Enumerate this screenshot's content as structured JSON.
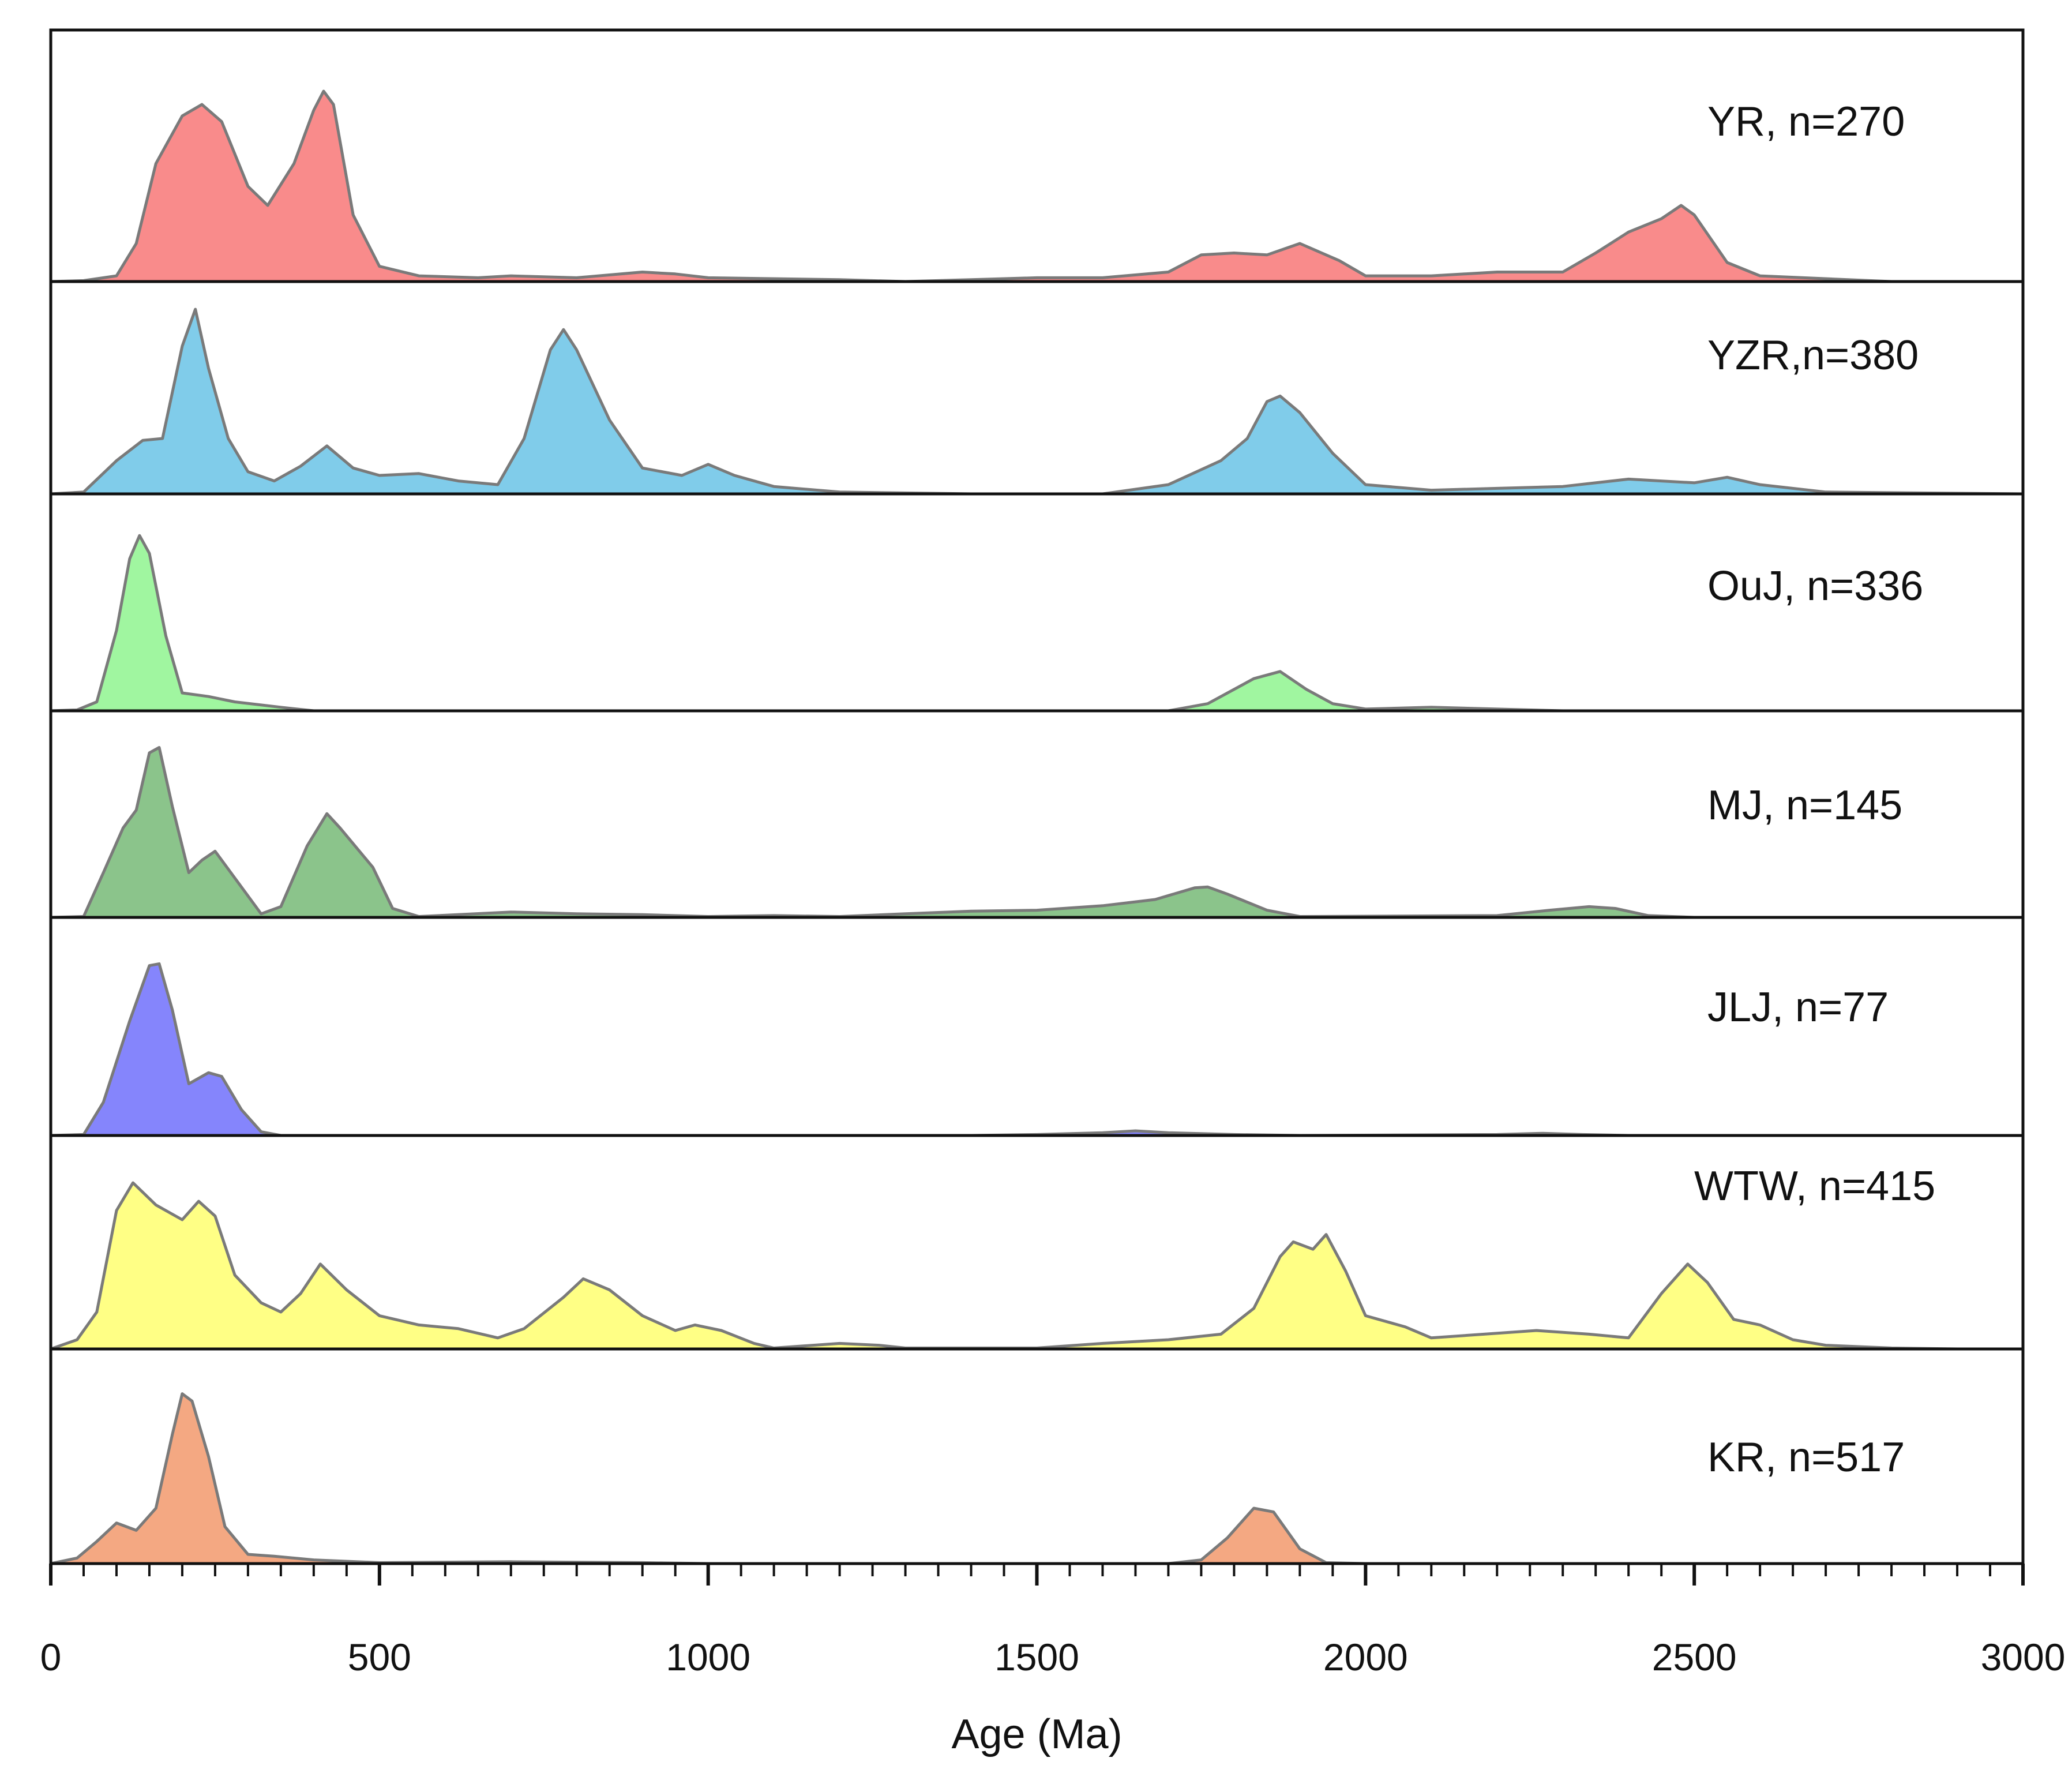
{
  "chart_data": {
    "type": "area",
    "title": "",
    "xlabel": "Age (Ma)",
    "ylabel": "",
    "xlim": [
      0,
      3000
    ],
    "xticks": [
      0,
      500,
      1000,
      1500,
      2000,
      2500,
      3000
    ],
    "xtick_labels": [
      "0",
      "500",
      "1000",
      "1500",
      "2000",
      "2500",
      "3000"
    ],
    "minor_tick_step": 50,
    "series": [
      {
        "name": "YR, n=270",
        "color": "#f98b8b",
        "points": [
          [
            0,
            0
          ],
          [
            50,
            0.005
          ],
          [
            100,
            0.03
          ],
          [
            130,
            0.2
          ],
          [
            160,
            0.62
          ],
          [
            200,
            0.87
          ],
          [
            230,
            0.93
          ],
          [
            260,
            0.84
          ],
          [
            300,
            0.5
          ],
          [
            330,
            0.4
          ],
          [
            370,
            0.62
          ],
          [
            400,
            0.9
          ],
          [
            415,
            1.0
          ],
          [
            430,
            0.93
          ],
          [
            460,
            0.35
          ],
          [
            500,
            0.08
          ],
          [
            560,
            0.03
          ],
          [
            650,
            0.02
          ],
          [
            700,
            0.03
          ],
          [
            800,
            0.02
          ],
          [
            900,
            0.05
          ],
          [
            950,
            0.04
          ],
          [
            1000,
            0.02
          ],
          [
            1200,
            0.01
          ],
          [
            1300,
            0.0
          ],
          [
            1400,
            0.01
          ],
          [
            1500,
            0.02
          ],
          [
            1600,
            0.02
          ],
          [
            1700,
            0.05
          ],
          [
            1750,
            0.14
          ],
          [
            1800,
            0.15
          ],
          [
            1850,
            0.14
          ],
          [
            1900,
            0.2
          ],
          [
            1960,
            0.11
          ],
          [
            2000,
            0.03
          ],
          [
            2100,
            0.03
          ],
          [
            2200,
            0.05
          ],
          [
            2300,
            0.05
          ],
          [
            2350,
            0.15
          ],
          [
            2400,
            0.26
          ],
          [
            2450,
            0.33
          ],
          [
            2480,
            0.4
          ],
          [
            2500,
            0.35
          ],
          [
            2550,
            0.1
          ],
          [
            2600,
            0.03
          ],
          [
            2800,
            0.0
          ],
          [
            3000,
            0.0
          ]
        ]
      },
      {
        "name": "YZR,n=380",
        "color": "#80ccea",
        "points": [
          [
            0,
            0
          ],
          [
            50,
            0.01
          ],
          [
            100,
            0.18
          ],
          [
            140,
            0.29
          ],
          [
            170,
            0.3
          ],
          [
            200,
            0.8
          ],
          [
            220,
            1.0
          ],
          [
            240,
            0.68
          ],
          [
            270,
            0.3
          ],
          [
            300,
            0.12
          ],
          [
            340,
            0.07
          ],
          [
            380,
            0.15
          ],
          [
            420,
            0.26
          ],
          [
            460,
            0.14
          ],
          [
            500,
            0.1
          ],
          [
            560,
            0.11
          ],
          [
            620,
            0.07
          ],
          [
            680,
            0.05
          ],
          [
            720,
            0.3
          ],
          [
            760,
            0.78
          ],
          [
            780,
            0.89
          ],
          [
            800,
            0.78
          ],
          [
            850,
            0.4
          ],
          [
            900,
            0.14
          ],
          [
            960,
            0.1
          ],
          [
            1000,
            0.16
          ],
          [
            1040,
            0.1
          ],
          [
            1100,
            0.04
          ],
          [
            1200,
            0.01
          ],
          [
            1400,
            0.0
          ],
          [
            1600,
            0.0
          ],
          [
            1700,
            0.05
          ],
          [
            1780,
            0.18
          ],
          [
            1820,
            0.3
          ],
          [
            1850,
            0.5
          ],
          [
            1870,
            0.53
          ],
          [
            1900,
            0.44
          ],
          [
            1950,
            0.22
          ],
          [
            2000,
            0.05
          ],
          [
            2100,
            0.02
          ],
          [
            2200,
            0.03
          ],
          [
            2300,
            0.04
          ],
          [
            2400,
            0.08
          ],
          [
            2500,
            0.06
          ],
          [
            2550,
            0.09
          ],
          [
            2600,
            0.05
          ],
          [
            2700,
            0.01
          ],
          [
            3000,
            0.0
          ]
        ]
      },
      {
        "name": "OuJ, n=336",
        "color": "#a0f6a0",
        "points": [
          [
            0,
            0
          ],
          [
            40,
            0.005
          ],
          [
            70,
            0.05
          ],
          [
            100,
            0.45
          ],
          [
            120,
            0.85
          ],
          [
            135,
            0.98
          ],
          [
            150,
            0.88
          ],
          [
            175,
            0.42
          ],
          [
            200,
            0.1
          ],
          [
            240,
            0.08
          ],
          [
            280,
            0.05
          ],
          [
            350,
            0.02
          ],
          [
            400,
            0.0
          ],
          [
            1000,
            0.0
          ],
          [
            1700,
            0.0
          ],
          [
            1760,
            0.04
          ],
          [
            1830,
            0.18
          ],
          [
            1870,
            0.22
          ],
          [
            1910,
            0.12
          ],
          [
            1950,
            0.04
          ],
          [
            2000,
            0.01
          ],
          [
            2100,
            0.02
          ],
          [
            2200,
            0.01
          ],
          [
            2300,
            0.0
          ],
          [
            3000,
            0.0
          ]
        ]
      },
      {
        "name": "MJ, n=145",
        "color": "#8bc48b",
        "points": [
          [
            0,
            0
          ],
          [
            50,
            0.005
          ],
          [
            80,
            0.25
          ],
          [
            110,
            0.5
          ],
          [
            130,
            0.6
          ],
          [
            150,
            0.92
          ],
          [
            165,
            0.95
          ],
          [
            185,
            0.62
          ],
          [
            210,
            0.25
          ],
          [
            230,
            0.32
          ],
          [
            250,
            0.37
          ],
          [
            280,
            0.22
          ],
          [
            320,
            0.02
          ],
          [
            350,
            0.06
          ],
          [
            390,
            0.4
          ],
          [
            420,
            0.58
          ],
          [
            440,
            0.5
          ],
          [
            490,
            0.28
          ],
          [
            520,
            0.05
          ],
          [
            560,
            0.005
          ],
          [
            700,
            0.03
          ],
          [
            800,
            0.02
          ],
          [
            900,
            0.015
          ],
          [
            1000,
            0.005
          ],
          [
            1100,
            0.01
          ],
          [
            1200,
            0.005
          ],
          [
            1300,
            0.02
          ],
          [
            1400,
            0.035
          ],
          [
            1500,
            0.04
          ],
          [
            1600,
            0.065
          ],
          [
            1680,
            0.1
          ],
          [
            1740,
            0.165
          ],
          [
            1760,
            0.17
          ],
          [
            1790,
            0.13
          ],
          [
            1850,
            0.04
          ],
          [
            1900,
            0.005
          ],
          [
            2200,
            0.01
          ],
          [
            2280,
            0.04
          ],
          [
            2340,
            0.06
          ],
          [
            2380,
            0.05
          ],
          [
            2430,
            0.01
          ],
          [
            2500,
            0.0
          ],
          [
            3000,
            0.0
          ]
        ]
      },
      {
        "name": "JLJ, n=77",
        "color": "#8585fc",
        "points": [
          [
            0,
            0
          ],
          [
            50,
            0.005
          ],
          [
            80,
            0.18
          ],
          [
            120,
            0.62
          ],
          [
            150,
            0.92
          ],
          [
            165,
            0.93
          ],
          [
            185,
            0.68
          ],
          [
            210,
            0.28
          ],
          [
            240,
            0.34
          ],
          [
            260,
            0.32
          ],
          [
            290,
            0.14
          ],
          [
            320,
            0.02
          ],
          [
            350,
            0.0
          ],
          [
            1000,
            0.0
          ],
          [
            1400,
            0.0
          ],
          [
            1500,
            0.005
          ],
          [
            1600,
            0.015
          ],
          [
            1650,
            0.025
          ],
          [
            1700,
            0.015
          ],
          [
            1800,
            0.005
          ],
          [
            1900,
            0.0
          ],
          [
            2200,
            0.005
          ],
          [
            2270,
            0.012
          ],
          [
            2330,
            0.005
          ],
          [
            2400,
            0.0
          ],
          [
            3000,
            0.0
          ]
        ]
      },
      {
        "name": "WTW, n=415",
        "color": "#ffff85",
        "points": [
          [
            0,
            0
          ],
          [
            40,
            0.05
          ],
          [
            70,
            0.2
          ],
          [
            100,
            0.75
          ],
          [
            125,
            0.9
          ],
          [
            160,
            0.78
          ],
          [
            200,
            0.7
          ],
          [
            225,
            0.8
          ],
          [
            250,
            0.72
          ],
          [
            280,
            0.4
          ],
          [
            320,
            0.25
          ],
          [
            350,
            0.2
          ],
          [
            380,
            0.3
          ],
          [
            410,
            0.46
          ],
          [
            450,
            0.32
          ],
          [
            500,
            0.18
          ],
          [
            560,
            0.13
          ],
          [
            620,
            0.11
          ],
          [
            680,
            0.06
          ],
          [
            720,
            0.11
          ],
          [
            780,
            0.28
          ],
          [
            810,
            0.38
          ],
          [
            850,
            0.32
          ],
          [
            900,
            0.18
          ],
          [
            950,
            0.1
          ],
          [
            980,
            0.13
          ],
          [
            1020,
            0.1
          ],
          [
            1070,
            0.03
          ],
          [
            1100,
            0.005
          ],
          [
            1200,
            0.03
          ],
          [
            1260,
            0.02
          ],
          [
            1300,
            0.005
          ],
          [
            1400,
            0.005
          ],
          [
            1500,
            0.005
          ],
          [
            1600,
            0.03
          ],
          [
            1700,
            0.05
          ],
          [
            1780,
            0.08
          ],
          [
            1830,
            0.22
          ],
          [
            1870,
            0.5
          ],
          [
            1890,
            0.58
          ],
          [
            1920,
            0.54
          ],
          [
            1940,
            0.62
          ],
          [
            1970,
            0.42
          ],
          [
            2000,
            0.18
          ],
          [
            2060,
            0.12
          ],
          [
            2100,
            0.06
          ],
          [
            2180,
            0.08
          ],
          [
            2260,
            0.1
          ],
          [
            2340,
            0.08
          ],
          [
            2400,
            0.06
          ],
          [
            2450,
            0.3
          ],
          [
            2490,
            0.46
          ],
          [
            2520,
            0.36
          ],
          [
            2560,
            0.16
          ],
          [
            2600,
            0.13
          ],
          [
            2650,
            0.05
          ],
          [
            2700,
            0.02
          ],
          [
            2800,
            0.005
          ],
          [
            2900,
            0.0
          ],
          [
            3000,
            0.0
          ]
        ]
      },
      {
        "name": "KR, n=517",
        "color": "#f4a882",
        "points": [
          [
            0,
            0
          ],
          [
            40,
            0.03
          ],
          [
            70,
            0.12
          ],
          [
            100,
            0.22
          ],
          [
            130,
            0.18
          ],
          [
            160,
            0.3
          ],
          [
            185,
            0.7
          ],
          [
            200,
            0.92
          ],
          [
            215,
            0.88
          ],
          [
            240,
            0.58
          ],
          [
            265,
            0.2
          ],
          [
            300,
            0.05
          ],
          [
            340,
            0.04
          ],
          [
            400,
            0.02
          ],
          [
            500,
            0.005
          ],
          [
            700,
            0.01
          ],
          [
            900,
            0.005
          ],
          [
            1000,
            0.0
          ],
          [
            1700,
            0.0
          ],
          [
            1750,
            0.02
          ],
          [
            1790,
            0.14
          ],
          [
            1830,
            0.3
          ],
          [
            1860,
            0.28
          ],
          [
            1900,
            0.08
          ],
          [
            1940,
            0.005
          ],
          [
            2000,
            0.0
          ],
          [
            3000,
            0.0
          ]
        ]
      }
    ]
  }
}
